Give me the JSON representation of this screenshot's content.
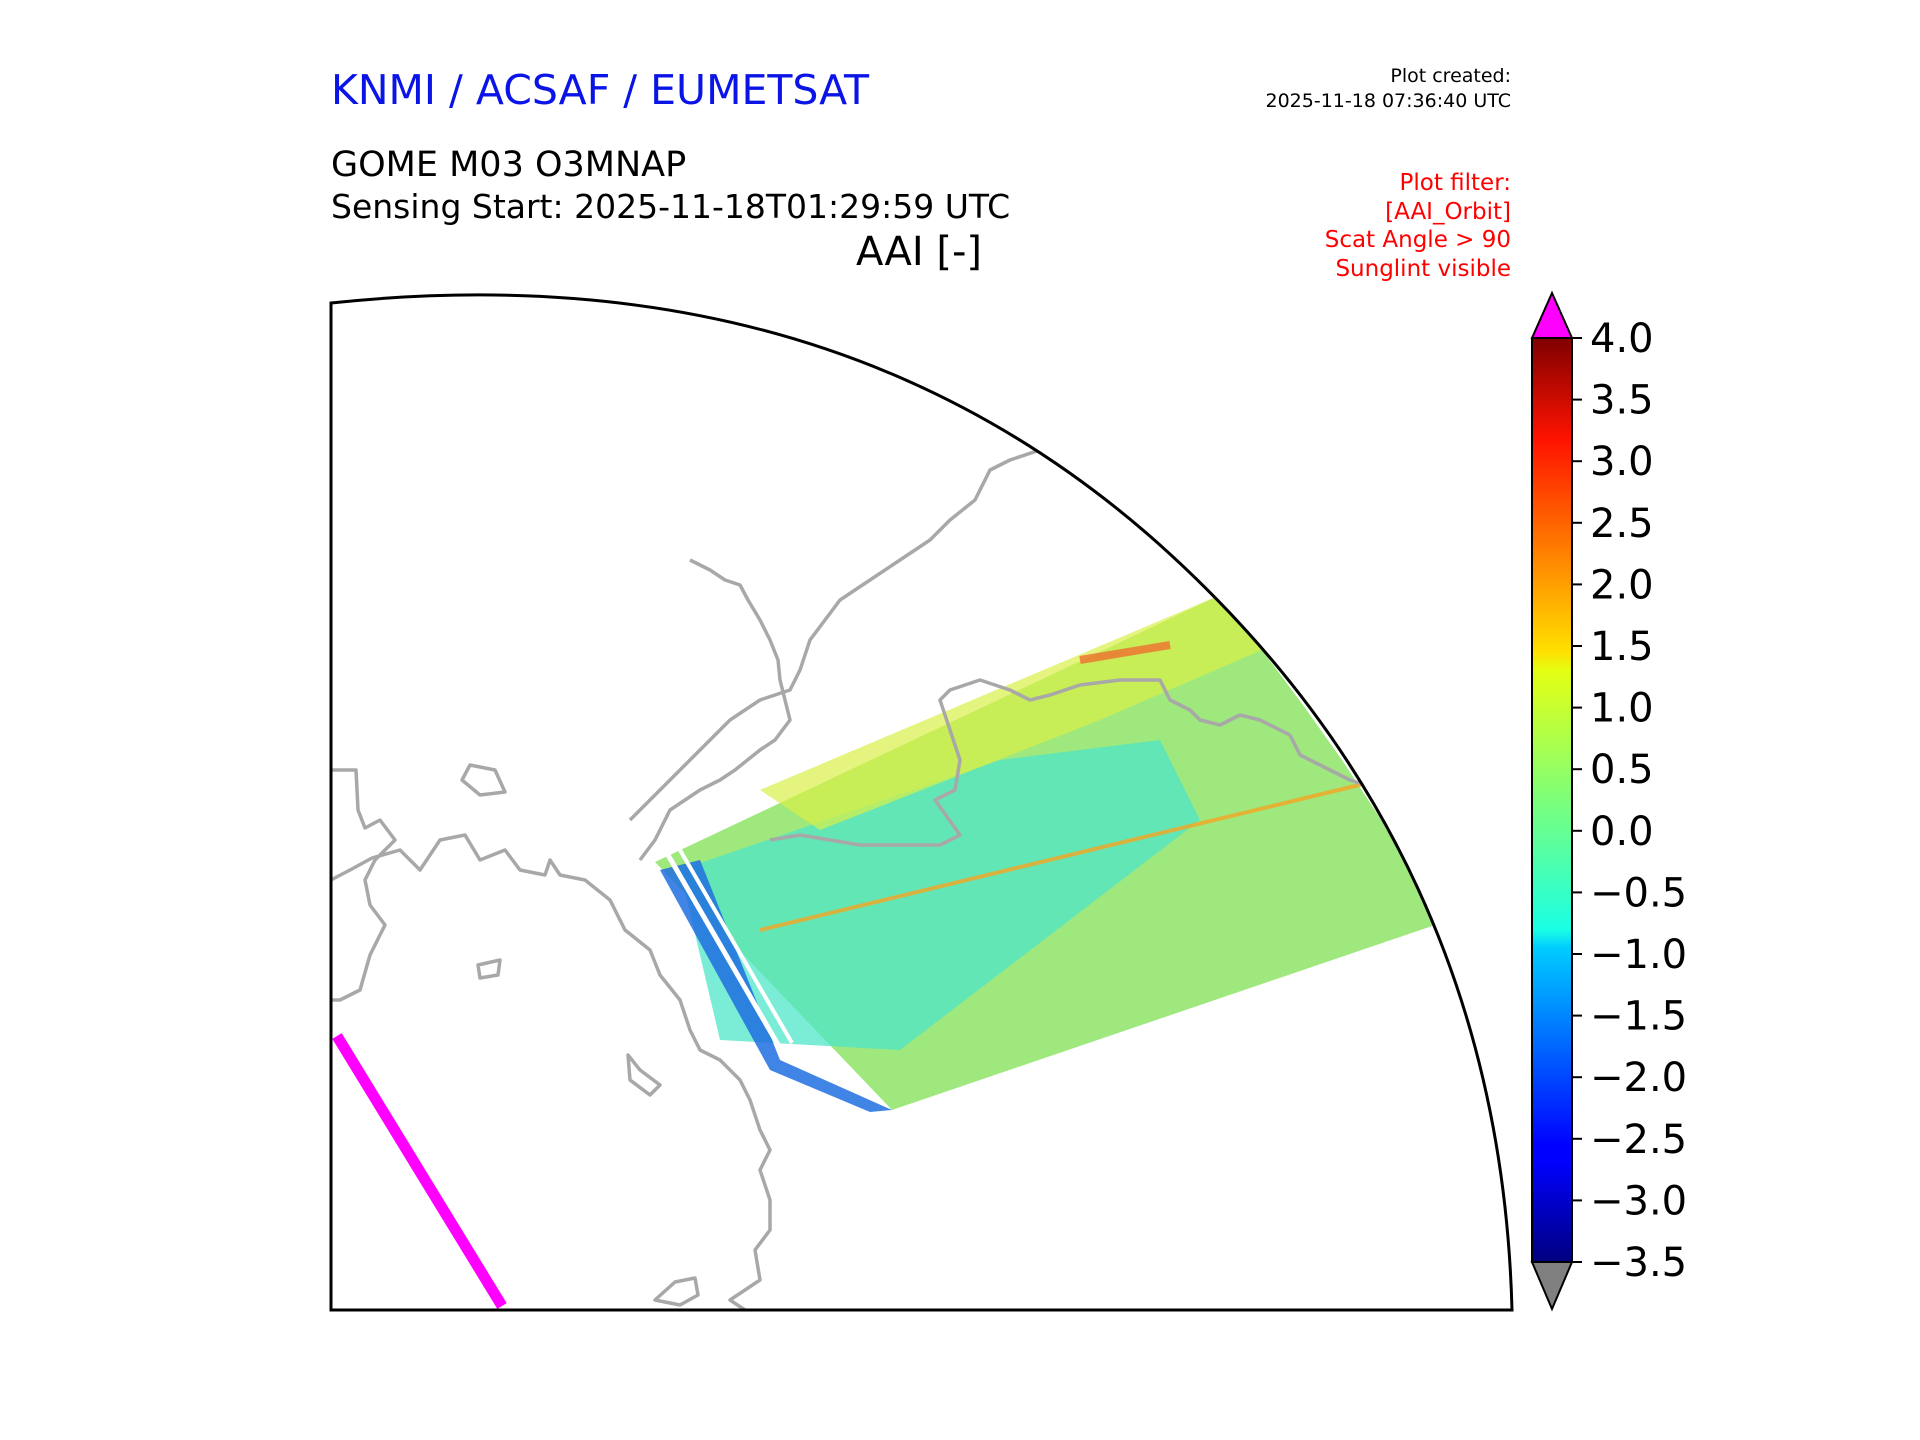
{
  "header": {
    "organisations": "KNMI / ACSAF / EUMETSAT",
    "organisations_color": "#0a14e6",
    "plot_created_label": "Plot created:",
    "plot_created_time": "2025-11-18 07:36:40 UTC",
    "product": "GOME M03 O3MNAP",
    "sensing_start": "Sensing Start: 2025-11-18T01:29:59 UTC",
    "quantity": "AAI [-]"
  },
  "plot_filter": {
    "lines": [
      "Plot filter:",
      "[AAI_Orbit]",
      "Scat Angle > 90",
      "Sunglint visible"
    ],
    "color": "#ff0000"
  },
  "colorbar": {
    "colormap": "jet",
    "min": -3.5,
    "max": 4.0,
    "ticks": [
      "4.0",
      "3.5",
      "3.0",
      "2.5",
      "2.0",
      "1.5",
      "1.0",
      "0.5",
      "0.0",
      "−0.5",
      "−1.0",
      "−1.5",
      "−2.0",
      "−2.5",
      "−3.0",
      "−3.5"
    ],
    "over_color": "#ff00ff",
    "under_color": "#808080"
  },
  "map": {
    "coastline_color": "#a0a0a0",
    "overflow_swath_color": "#ff00ff"
  }
}
